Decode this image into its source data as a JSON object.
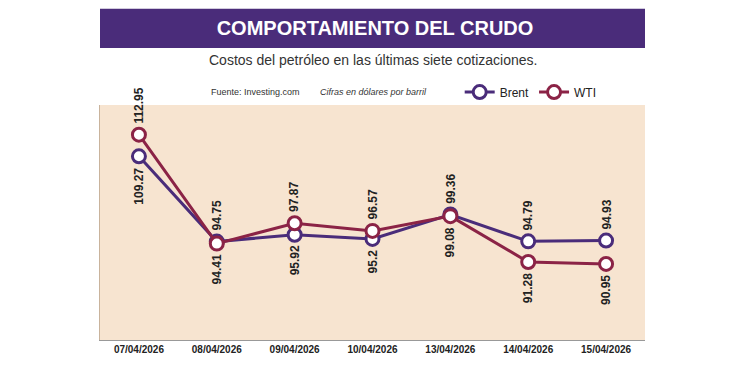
{
  "chart_data": {
    "type": "line",
    "title": "COMPORTAMIENTO DEL CRUDO",
    "subtitle": "Costos del petróleo en las últimas siete cotizaciones.",
    "source": "Fuente: Investing.com",
    "note": "Cifras en dólares por barril",
    "categories": [
      "07/04/2026",
      "08/04/2026",
      "09/04/2026",
      "10/04/2026",
      "13/04/2026",
      "14/04/2026",
      "15/04/2026"
    ],
    "series": [
      {
        "name": "Brent",
        "color": "#4a2c7a",
        "values": [
          109.27,
          94.75,
          95.92,
          95.2,
          99.36,
          94.79,
          94.93
        ]
      },
      {
        "name": "WTI",
        "color": "#8b2346",
        "values": [
          112.95,
          94.41,
          97.87,
          96.57,
          99.08,
          91.28,
          90.95
        ]
      }
    ],
    "ylim": [
      78,
      118
    ],
    "yticks": [],
    "tick_labels": "x",
    "data_labels": true,
    "marker": "circle",
    "legend": "top",
    "grid": false
  }
}
